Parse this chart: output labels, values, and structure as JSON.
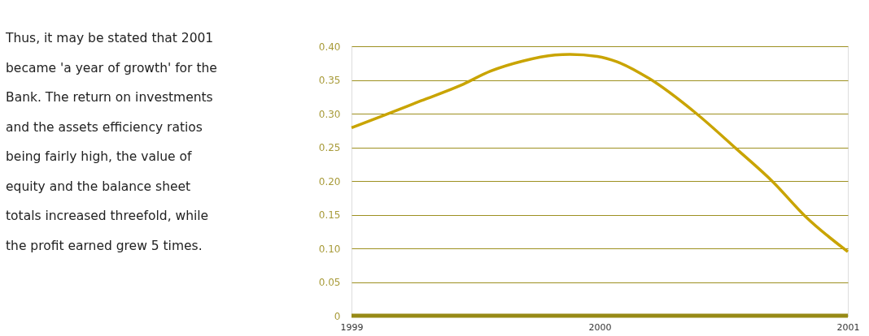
{
  "chart_data": {
    "type": "line",
    "x": [
      1999.0,
      1999.12,
      1999.28,
      1999.44,
      1999.56,
      1999.69,
      1999.82,
      1999.88,
      1999.99,
      2000.07,
      2000.2,
      2000.39,
      2000.55,
      2000.7,
      2000.83,
      2001.0
    ],
    "series": [
      {
        "color": "#c9a400",
        "values": [
          0.279,
          0.296,
          0.319,
          0.342,
          0.363,
          0.378,
          0.387,
          0.388,
          0.385,
          0.377,
          0.352,
          0.3,
          0.248,
          0.198,
          0.147,
          0.095
        ]
      }
    ],
    "xlim": [
      1999,
      2001
    ],
    "xticks": [
      1999,
      2000,
      2001
    ],
    "ylim": [
      0,
      0.4
    ],
    "yticks": [
      0,
      {
        "value": 0.05,
        "label": "0.05"
      },
      {
        "value": 0.1,
        "label": "0.10"
      },
      {
        "value": 0.15,
        "label": "0.15"
      },
      {
        "value": 0.2,
        "label": "0.20"
      },
      {
        "value": 0.25,
        "label": "0.25"
      },
      {
        "value": 0.3,
        "label": "0.30"
      },
      {
        "value": 0.35,
        "label": "0.35"
      },
      {
        "value": 0.4,
        "label": "0.40"
      }
    ],
    "grid": "y",
    "marker": "none",
    "line_style": "solid",
    "annotations": [
      "Thus, it may be stated that 2001 became 'a year of growth' for the Bank. The return on investments and the assets efficiency ratios being fairly high, the value of equity and the balance sheet totals increased threefold, while the profit earned grew 5 times."
    ]
  }
}
